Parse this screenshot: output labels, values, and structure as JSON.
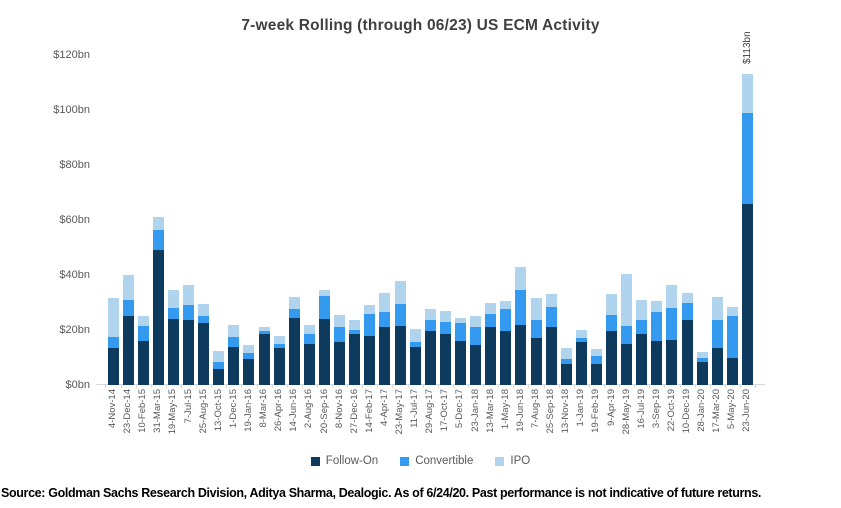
{
  "chart": {
    "peak_label": "$113bn"
  },
  "footer": {
    "source": "Source: Goldman Sachs Research Division, Aditya Sharma, Dealogic. As of 6/24/20. Past performance is not indicative of future returns."
  },
  "chart_data": {
    "type": "bar",
    "stacked": true,
    "title": "7-week Rolling (through 06/23) US ECM Activity",
    "unit": "USD billions",
    "grid": false,
    "legend_position": "bottom",
    "ylim": [
      0,
      120
    ],
    "ytick_labels": [
      "$0bn",
      "$20bn",
      "$40bn",
      "$60bn",
      "$80bn",
      "$100bn",
      "$120bn"
    ],
    "categories": [
      "4-Nov-14",
      "23-Dec-14",
      "10-Feb-15",
      "31-Mar-15",
      "19-May-15",
      "7-Jul-15",
      "25-Aug-15",
      "13-Oct-15",
      "1-Dec-15",
      "19-Jan-16",
      "8-Mar-16",
      "26-Apr-16",
      "14-Jun-16",
      "2-Aug-16",
      "20-Sep-16",
      "8-Nov-16",
      "27-Dec-16",
      "14-Feb-17",
      "4-Apr-17",
      "23-May-17",
      "11-Jul-17",
      "29-Aug-17",
      "17-Oct-17",
      "5-Dec-17",
      "23-Jan-18",
      "13-Mar-18",
      "1-May-18",
      "19-Jun-18",
      "7-Aug-18",
      "25-Sep-18",
      "13-Nov-18",
      "1-Jan-19",
      "19-Feb-19",
      "9-Apr-19",
      "28-May-19",
      "16-Jul-19",
      "3-Sep-19",
      "22-Oct-19",
      "10-Dec-19",
      "28-Jan-20",
      "17-Mar-20",
      "5-May-20",
      "23-Jun-20"
    ],
    "series": [
      {
        "name": "Follow-On",
        "color": "#0e3a5e",
        "values": [
          13.5,
          25,
          16,
          49,
          24,
          23.5,
          22.5,
          6,
          14,
          9.5,
          18.5,
          13.5,
          24.5,
          15,
          24,
          15.5,
          18.5,
          18,
          21,
          21.5,
          14,
          19.5,
          18.5,
          16,
          14.5,
          21,
          19.5,
          22,
          17,
          21,
          7.5,
          15.5,
          7.5,
          19.5,
          15,
          18.5,
          16,
          16.5,
          23.5,
          8.5,
          13.5,
          10,
          66
        ]
      },
      {
        "name": "Convertible",
        "color": "#339af0",
        "values": [
          4,
          6,
          5.5,
          7.5,
          4,
          5.5,
          2.5,
          2.5,
          3.5,
          2,
          1,
          1.5,
          3,
          3.5,
          8.5,
          5.5,
          1.5,
          8,
          5.5,
          8,
          1.5,
          4,
          4.5,
          6.5,
          6.5,
          5,
          8,
          12.5,
          6.5,
          7.5,
          2,
          1.5,
          3,
          6,
          6.5,
          5,
          10.5,
          11.5,
          6.5,
          1.5,
          10,
          15,
          33
        ]
      },
      {
        "name": "IPO",
        "color": "#b0d3ee",
        "values": [
          14,
          9,
          3.5,
          4.5,
          6.5,
          7.5,
          4.5,
          4,
          4.5,
          3,
          1.5,
          3,
          4.5,
          3.5,
          2,
          4.5,
          3.5,
          3,
          7,
          8.5,
          5,
          4,
          4,
          2,
          4,
          4,
          3,
          8.5,
          8,
          4.5,
          4,
          3,
          2.5,
          7.5,
          19,
          7.5,
          4,
          8.5,
          3.5,
          2,
          8.5,
          3.5,
          14
        ]
      }
    ],
    "annotation": {
      "text": "$113bn",
      "category_index": 42
    }
  }
}
